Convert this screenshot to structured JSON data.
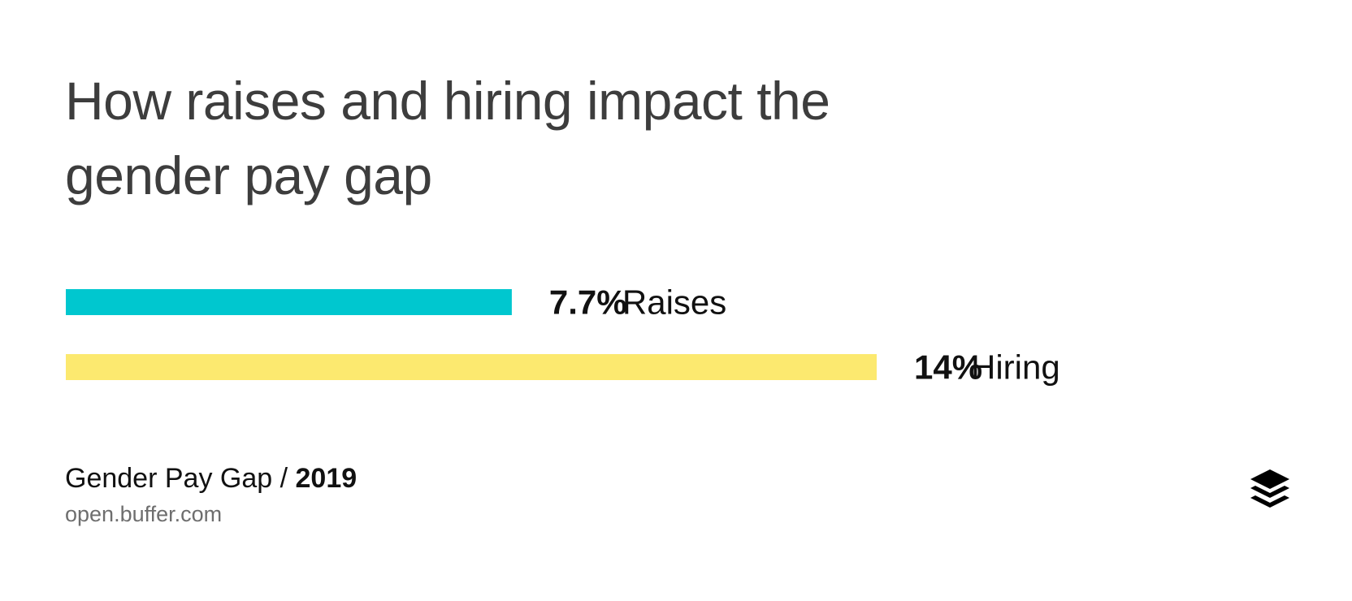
{
  "chart_data": {
    "type": "bar",
    "orientation": "horizontal",
    "title": "How raises and hiring impact the gender pay gap",
    "categories": [
      "Raises",
      "Hiring"
    ],
    "values": [
      7.7,
      14
    ],
    "value_labels": [
      "7.7%",
      "14%"
    ],
    "colors": [
      "#00c7cf",
      "#fce96f"
    ],
    "xlim": [
      0,
      14
    ],
    "grid": false
  },
  "footer": {
    "title_prefix": "Gender Pay Gap / ",
    "year": "2019",
    "url": "open.buffer.com"
  },
  "logo": {
    "icon": "buffer-stack-icon",
    "color": "#000000"
  }
}
